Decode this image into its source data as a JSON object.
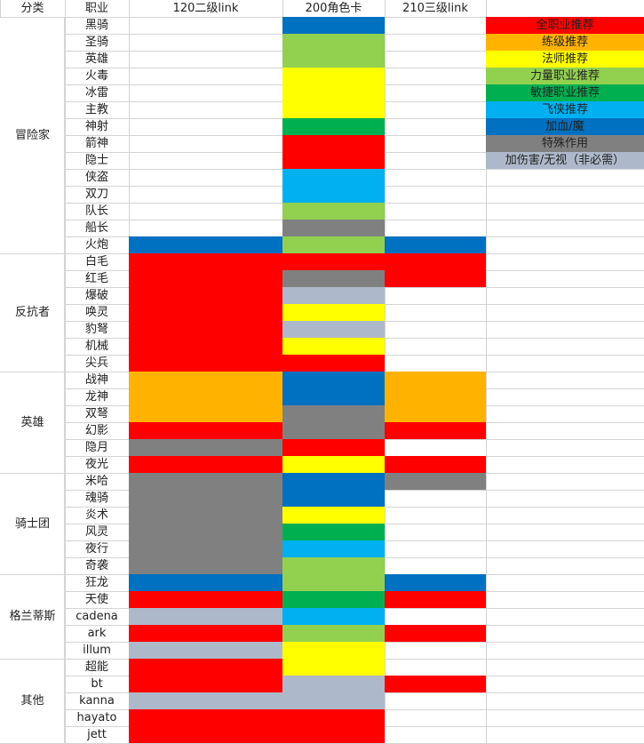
{
  "header": {
    "category": "分类",
    "job": "职业",
    "link120": "120二级link",
    "card200": "200角色卡",
    "link210": "210三级link"
  },
  "colors": {
    "R": "#ff0000",
    "O": "#ffb300",
    "Y": "#ffff00",
    "L": "#92d050",
    "G": "#00b050",
    "C": "#00b0f0",
    "B": "#0070c0",
    "D": "#808080",
    "S": "#adb9ca",
    "W": "#ffffff"
  },
  "legend": [
    {
      "label": "全职业推荐",
      "color": "#ff0000"
    },
    {
      "label": "练级推荐",
      "color": "#ffb300"
    },
    {
      "label": "法师推荐",
      "color": "#ffff00"
    },
    {
      "label": "力量职业推荐",
      "color": "#92d050"
    },
    {
      "label": "敏捷职业推荐",
      "color": "#00b050"
    },
    {
      "label": "飞侠推荐",
      "color": "#00b0f0"
    },
    {
      "label": "加血/魔",
      "color": "#0070c0"
    },
    {
      "label": "特殊作用",
      "color": "#808080"
    },
    {
      "label": "加伤害/无视（非必需）",
      "color": "#adb9ca"
    }
  ],
  "groups": [
    {
      "name": "冒险家",
      "start": 0,
      "count": 14
    },
    {
      "name": "反抗者",
      "start": 14,
      "count": 7
    },
    {
      "name": "英雄",
      "start": 21,
      "count": 6
    },
    {
      "name": "骑士团",
      "start": 27,
      "count": 6
    },
    {
      "name": "格兰蒂斯",
      "start": 33,
      "count": 5
    },
    {
      "name": "其他",
      "start": 38,
      "count": 5
    }
  ],
  "rows": [
    {
      "job": "黑骑",
      "c1": "W",
      "c2": "B",
      "c3": "W"
    },
    {
      "job": "圣骑",
      "c1": "W",
      "c2": "L",
      "c3": "W"
    },
    {
      "job": "英雄",
      "c1": "W",
      "c2": "L",
      "c3": "W"
    },
    {
      "job": "火毒",
      "c1": "W",
      "c2": "Y",
      "c3": "W"
    },
    {
      "job": "冰雷",
      "c1": "W",
      "c2": "Y",
      "c3": "W"
    },
    {
      "job": "主教",
      "c1": "W",
      "c2": "Y",
      "c3": "W"
    },
    {
      "job": "神射",
      "c1": "W",
      "c2": "G",
      "c3": "W"
    },
    {
      "job": "箭神",
      "c1": "W",
      "c2": "R",
      "c3": "W"
    },
    {
      "job": "隐士",
      "c1": "W",
      "c2": "R",
      "c3": "W"
    },
    {
      "job": "侠盗",
      "c1": "W",
      "c2": "C",
      "c3": "W"
    },
    {
      "job": "双刀",
      "c1": "W",
      "c2": "C",
      "c3": "W"
    },
    {
      "job": "队长",
      "c1": "W",
      "c2": "L",
      "c3": "W"
    },
    {
      "job": "船长",
      "c1": "W",
      "c2": "D",
      "c3": "W"
    },
    {
      "job": "火炮",
      "c1": "B",
      "c2": "L",
      "c3": "B"
    },
    {
      "job": "白毛",
      "c1": "R",
      "c2": "R",
      "c3": "R"
    },
    {
      "job": "红毛",
      "c1": "R",
      "c2": "D",
      "c3": "R"
    },
    {
      "job": "爆破",
      "c1": "R",
      "c2": "S",
      "c3": "W"
    },
    {
      "job": "唤灵",
      "c1": "R",
      "c2": "Y",
      "c3": "W"
    },
    {
      "job": "豹弩",
      "c1": "R",
      "c2": "S",
      "c3": "W"
    },
    {
      "job": "机械",
      "c1": "R",
      "c2": "Y",
      "c3": "W"
    },
    {
      "job": "尖兵",
      "c1": "R",
      "c2": "R",
      "c3": "W"
    },
    {
      "job": "战神",
      "c1": "O",
      "c2": "B",
      "c3": "O"
    },
    {
      "job": "龙神",
      "c1": "O",
      "c2": "B",
      "c3": "O"
    },
    {
      "job": "双弩",
      "c1": "O",
      "c2": "D",
      "c3": "O"
    },
    {
      "job": "幻影",
      "c1": "R",
      "c2": "D",
      "c3": "R"
    },
    {
      "job": "隐月",
      "c1": "D",
      "c2": "R",
      "c3": "W"
    },
    {
      "job": "夜光",
      "c1": "R",
      "c2": "Y",
      "c3": "R"
    },
    {
      "job": "米哈",
      "c1": "D",
      "c2": "B",
      "c3": "D"
    },
    {
      "job": "魂骑",
      "c1": "D",
      "c2": "B",
      "c3": "W"
    },
    {
      "job": "炎术",
      "c1": "D",
      "c2": "Y",
      "c3": "W"
    },
    {
      "job": "风灵",
      "c1": "D",
      "c2": "G",
      "c3": "W"
    },
    {
      "job": "夜行",
      "c1": "D",
      "c2": "C",
      "c3": "W"
    },
    {
      "job": "奇袭",
      "c1": "D",
      "c2": "L",
      "c3": "W"
    },
    {
      "job": "狂龙",
      "c1": "B",
      "c2": "L",
      "c3": "B"
    },
    {
      "job": "天使",
      "c1": "R",
      "c2": "G",
      "c3": "R"
    },
    {
      "job": "cadena",
      "c1": "S",
      "c2": "C",
      "c3": "W"
    },
    {
      "job": "ark",
      "c1": "R",
      "c2": "L",
      "c3": "R"
    },
    {
      "job": "illum",
      "c1": "S",
      "c2": "Y",
      "c3": "W"
    },
    {
      "job": "超能",
      "c1": "R",
      "c2": "Y",
      "c3": "W"
    },
    {
      "job": "bt",
      "c1": "R",
      "c2": "S",
      "c3": "R"
    },
    {
      "job": "kanna",
      "c1": "S",
      "c2": "S",
      "c3": "W"
    },
    {
      "job": "hayato",
      "c1": "R",
      "c2": "R",
      "c3": "W"
    },
    {
      "job": "jett",
      "c1": "R",
      "c2": "R",
      "c3": "W"
    }
  ]
}
